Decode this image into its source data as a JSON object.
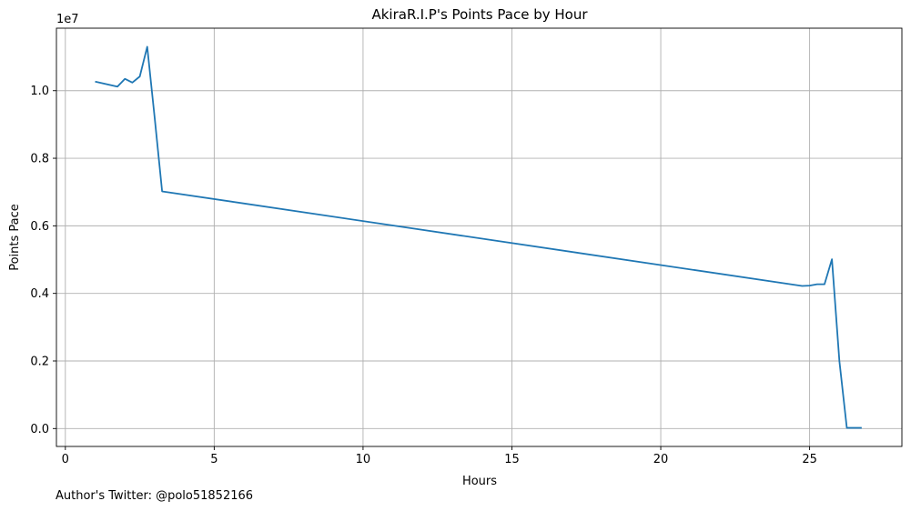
{
  "chart_data": {
    "type": "line",
    "title": "AkiraR.I.P's Points Pace by Hour",
    "xlabel": "Hours",
    "ylabel": "Points Pace",
    "y_offset_label": "1e7",
    "xlim": [
      -0.3,
      28.1
    ],
    "ylim": [
      -0.53,
      11.85
    ],
    "x_ticks": [
      0,
      5,
      10,
      15,
      20,
      25
    ],
    "y_ticks": [
      0.0,
      0.2,
      0.4,
      0.6,
      0.8,
      1.0
    ],
    "y_tick_labels": [
      "0.0",
      "0.2",
      "0.4",
      "0.6",
      "0.8",
      "1.0"
    ],
    "grid": true,
    "series": [
      {
        "color": "#1f77b4",
        "x": [
          1.0,
          1.75,
          2.0,
          2.25,
          2.5,
          2.75,
          3.0,
          3.25,
          24.75,
          25.0,
          25.25,
          25.5,
          25.75,
          26.0,
          26.25,
          26.75
        ],
        "y": [
          10.27,
          10.12,
          10.35,
          10.24,
          10.42,
          11.3,
          9.2,
          7.02,
          4.22,
          4.23,
          4.27,
          4.27,
          5.01,
          2.0,
          0.02,
          0.02
        ]
      }
    ]
  },
  "footer": {
    "author_text": "Author's Twitter: @polo51852166"
  }
}
